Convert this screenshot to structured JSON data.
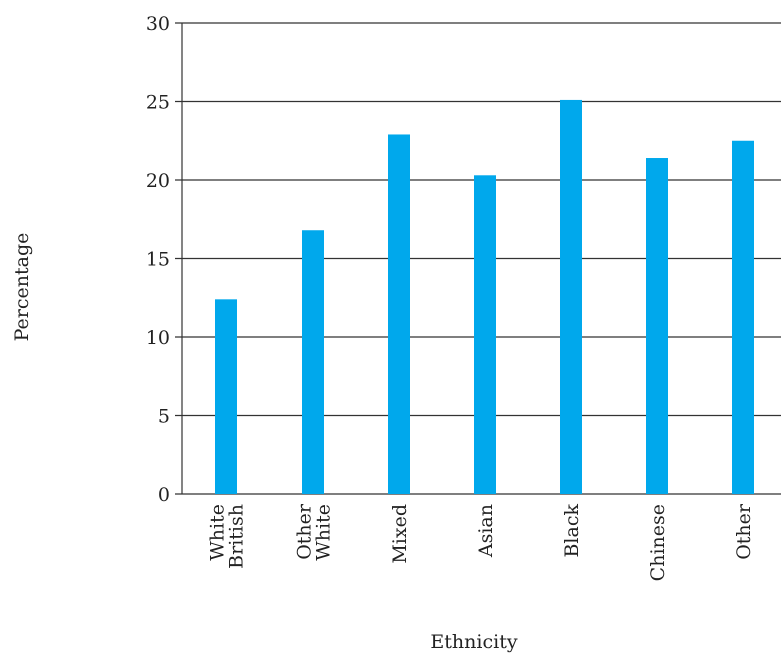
{
  "chart_data": {
    "type": "bar",
    "categories": [
      [
        "White",
        "British"
      ],
      [
        "Other",
        "White"
      ],
      [
        "Mixed"
      ],
      [
        "Asian"
      ],
      [
        "Black"
      ],
      [
        "Chinese"
      ],
      [
        "Other"
      ]
    ],
    "values": [
      12.4,
      16.8,
      22.9,
      20.3,
      25.1,
      21.4,
      22.5
    ],
    "xlabel": "Ethnicity",
    "ylabel": "Percentage",
    "ylim": [
      0,
      30
    ],
    "yticks": [
      0,
      5,
      10,
      15,
      20,
      25,
      30
    ],
    "grid": true,
    "bar_color": "#00a8ec"
  }
}
